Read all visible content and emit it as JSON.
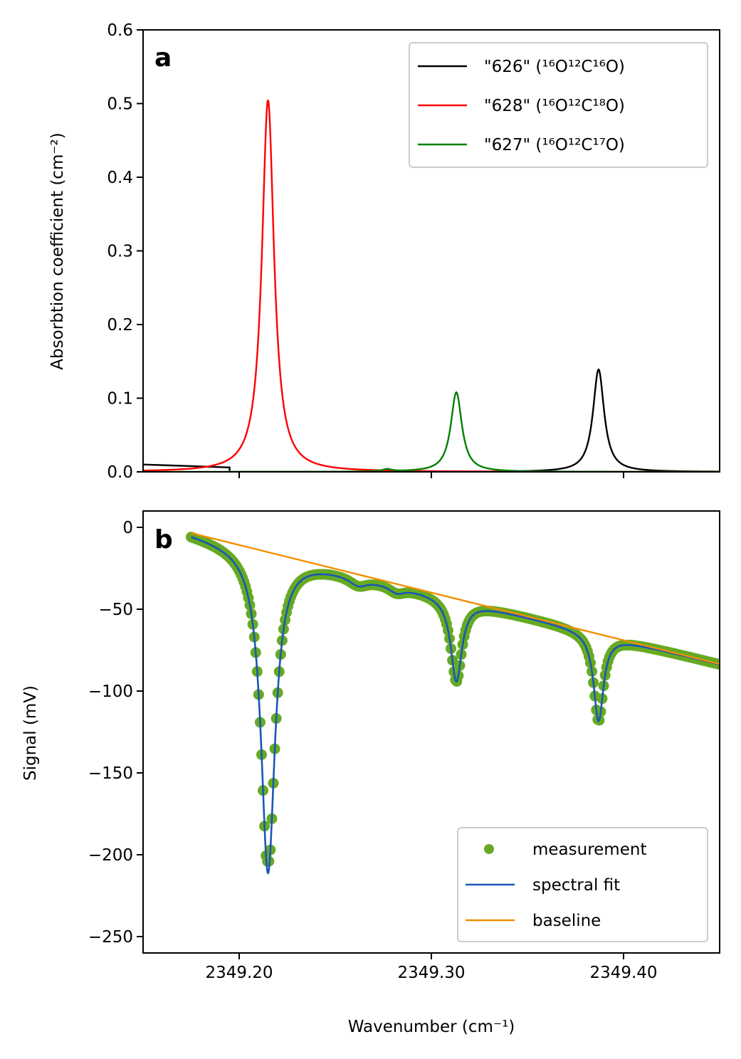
{
  "chart_data": [
    {
      "panel": "a",
      "type": "line",
      "ylabel": "Absorbtion coefficient (cm⁻²)",
      "xlim": [
        2349.15,
        2349.45
      ],
      "ylim": [
        0.0,
        0.6
      ],
      "xticks": [
        2349.2,
        2349.3,
        2349.4
      ],
      "yticks": [
        "0.0",
        "0.1",
        "0.2",
        "0.3",
        "0.4",
        "0.5",
        "0.6"
      ],
      "legend_position": "top-right",
      "grid": false,
      "series": [
        {
          "name": "\"626\" (¹⁶O¹²C¹⁶O)",
          "color": "#000000",
          "center": 2349.387,
          "peak": 0.139,
          "hwhm": 0.0035,
          "xstart": 2349.195,
          "edge_segment": {
            "x": [
              2349.15,
              2349.195
            ],
            "y": [
              0.01,
              0.006
            ]
          }
        },
        {
          "name": "\"628\" (¹⁶O¹²C¹⁸O)",
          "color": "#ff0000",
          "center": 2349.215,
          "peak": 0.505,
          "hwhm": 0.0038
        },
        {
          "name": "\"627\" (¹⁶O¹²C¹⁷O)",
          "color": "#008000",
          "center": 2349.313,
          "peak": 0.108,
          "hwhm": 0.0035,
          "minor_peaks": [
            {
              "center": 2349.277,
              "peak": 0.003,
              "hwhm": 0.003
            }
          ]
        }
      ]
    },
    {
      "panel": "b",
      "type": "scatter",
      "xlabel": "Wavenumber (cm⁻¹)",
      "ylabel": "Signal (mV)",
      "xlim": [
        2349.15,
        2349.45
      ],
      "ylim": [
        -260,
        10
      ],
      "xticks": [
        "2349.20",
        "2349.30",
        "2349.40"
      ],
      "yticks": [
        "0",
        "−50",
        "−100",
        "−150",
        "−200",
        "−250"
      ],
      "legend_position": "bottom-right",
      "grid": false,
      "series": [
        {
          "name": "measurement",
          "type": "scatter",
          "color": "#66aa22",
          "x_range": [
            2349.175,
            2349.45
          ]
        },
        {
          "name": "spectral fit",
          "type": "line",
          "color": "#1a56b8",
          "x_range": [
            2349.175,
            2349.45
          ]
        },
        {
          "name": "baseline",
          "type": "line",
          "color": "#f28e00",
          "x": [
            2349.175,
            2349.45
          ],
          "y": [
            -3.5,
            -83.5
          ]
        }
      ],
      "dips": [
        {
          "center": 2349.215,
          "depth": 196,
          "hwhm": 0.0044
        },
        {
          "center": 2349.313,
          "depth": 50,
          "hwhm": 0.0035
        },
        {
          "center": 2349.387,
          "depth": 53,
          "hwhm": 0.0031
        }
      ],
      "shoulders": [
        {
          "center": 2349.262,
          "depth": 5,
          "hwhm": 0.006
        },
        {
          "center": 2349.282,
          "depth": 4,
          "hwhm": 0.005
        }
      ],
      "minimum_measurement": -204
    }
  ]
}
